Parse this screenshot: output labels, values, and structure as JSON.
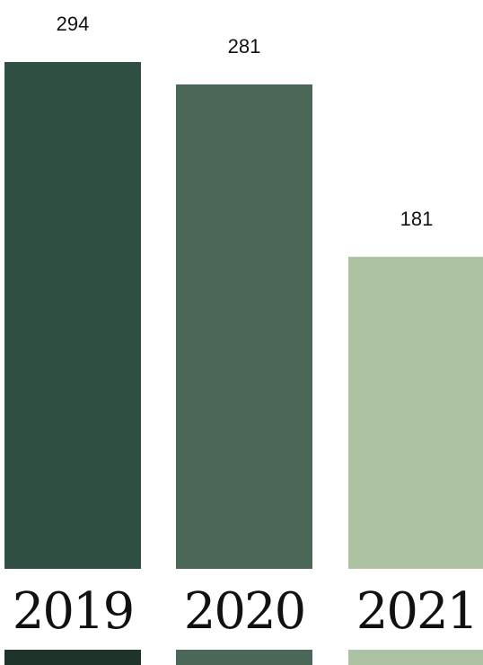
{
  "chart_data": {
    "type": "bar",
    "categories": [
      "2019",
      "2020",
      "2021"
    ],
    "values": [
      294,
      281,
      181
    ],
    "title": "",
    "xlabel": "",
    "ylabel": "",
    "grid": false,
    "legend": "none"
  },
  "colors": {
    "bars": [
      "#2f4f43",
      "#4a6758",
      "#acc2a3"
    ],
    "bottom_strips": [
      "#1e3329",
      "#4a6758",
      "#acc2a3"
    ]
  }
}
